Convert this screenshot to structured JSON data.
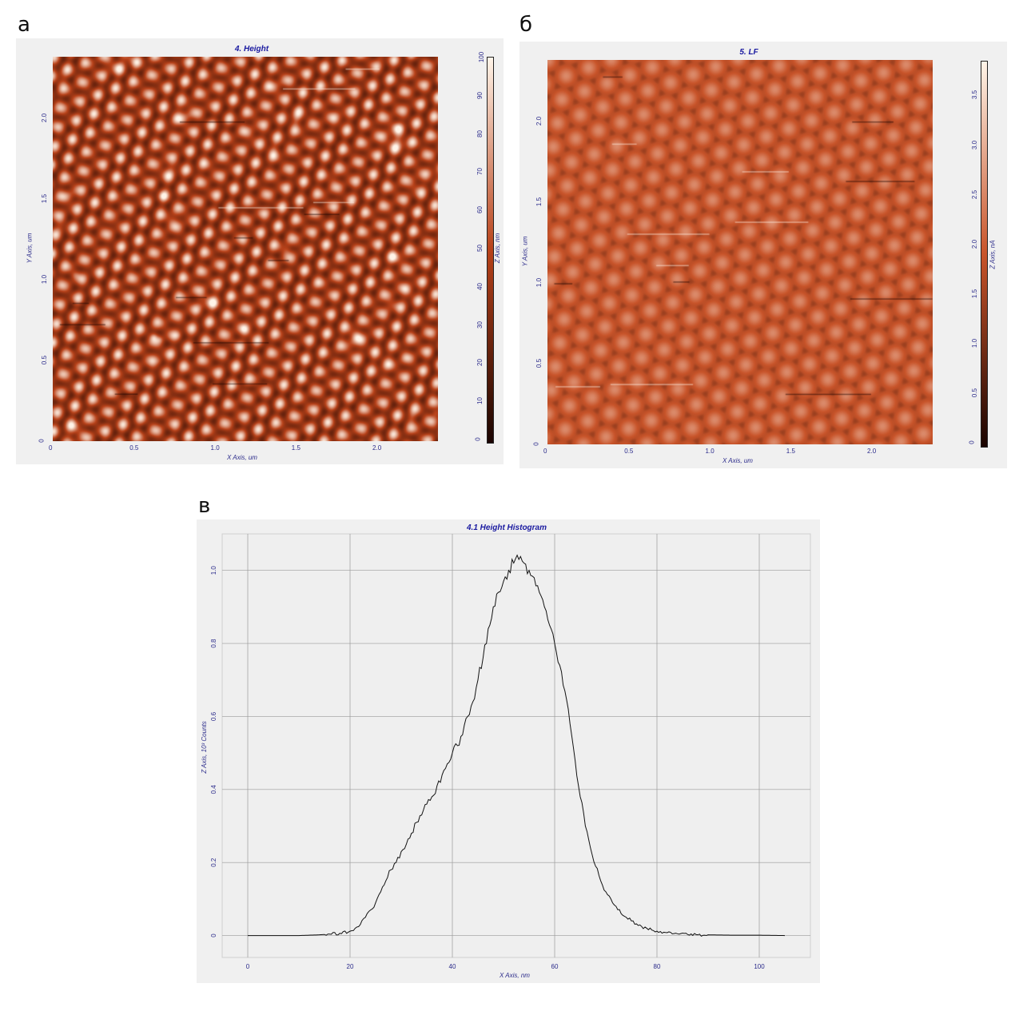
{
  "panels": {
    "a": {
      "letter": "а",
      "title": "4. Height",
      "xlabel": "X Axis, um",
      "ylabel": "Y Axis, um",
      "zlabel": "Z Axis, nm",
      "xticks": [
        "0",
        "0.5",
        "1.0",
        "1.5",
        "2.0"
      ],
      "yticks": [
        "0",
        "0.5",
        "1.0",
        "1.5",
        "2.0"
      ],
      "zticks": [
        "0",
        "10",
        "20",
        "30",
        "40",
        "50",
        "60",
        "70",
        "80",
        "90",
        "100"
      ],
      "colors": {
        "low": "#1a0400",
        "mid": "#b8421a",
        "high": "#fff4e8"
      }
    },
    "b": {
      "letter": "б",
      "title": "5. LF",
      "xlabel": "X Axis, um",
      "ylabel": "Y Axis, um",
      "zlabel": "Z Axis, nA",
      "xticks": [
        "0",
        "0.5",
        "1.0",
        "1.5",
        "2.0"
      ],
      "yticks": [
        "0",
        "0.5",
        "1.0",
        "1.5",
        "2.0"
      ],
      "zticks": [
        "0",
        "0.5",
        "1.0",
        "1.5",
        "2.0",
        "2.5",
        "3.0",
        "3.5"
      ],
      "colors": {
        "low": "#1a0400",
        "mid": "#c8542a",
        "high": "#fff4e8"
      }
    },
    "c": {
      "letter": "в"
    }
  },
  "chart_data": {
    "type": "line",
    "title": "4.1 Height Histogram",
    "xlabel": "X Axis, nm",
    "ylabel": "Z Axis, 10³ Counts",
    "xlim": [
      -5,
      110
    ],
    "ylim": [
      -0.06,
      1.1
    ],
    "xticks": [
      "0",
      "20",
      "40",
      "60",
      "80",
      "100"
    ],
    "yticks": [
      "0",
      "0.2",
      "0.4",
      "0.6",
      "0.8",
      "1.0"
    ],
    "grid": true,
    "x": [
      0,
      10,
      14,
      16,
      18,
      20,
      21,
      22,
      23,
      24,
      25,
      26,
      27,
      28,
      29,
      30,
      31,
      32,
      33,
      34,
      35,
      36,
      37,
      38,
      39,
      40,
      41,
      42,
      43,
      44,
      45,
      46,
      47,
      48,
      49,
      50,
      51,
      52,
      53,
      54,
      55,
      56,
      57,
      58,
      59,
      60,
      61,
      62,
      63,
      64,
      65,
      66,
      67,
      68,
      69,
      70,
      71,
      72,
      73,
      74,
      75,
      76,
      77,
      78,
      79,
      80,
      82,
      84,
      86,
      88,
      90,
      95,
      100,
      105
    ],
    "series": [
      {
        "values": [
          0.0,
          0.0,
          0.002,
          0.004,
          0.006,
          0.012,
          0.02,
          0.03,
          0.05,
          0.07,
          0.09,
          0.12,
          0.15,
          0.18,
          0.2,
          0.23,
          0.25,
          0.28,
          0.31,
          0.33,
          0.36,
          0.38,
          0.41,
          0.44,
          0.47,
          0.5,
          0.52,
          0.55,
          0.6,
          0.64,
          0.7,
          0.76,
          0.84,
          0.9,
          0.94,
          0.97,
          1.0,
          1.02,
          1.03,
          1.02,
          1.0,
          0.98,
          0.94,
          0.9,
          0.85,
          0.8,
          0.74,
          0.67,
          0.58,
          0.48,
          0.38,
          0.3,
          0.24,
          0.19,
          0.15,
          0.12,
          0.1,
          0.08,
          0.06,
          0.05,
          0.04,
          0.032,
          0.025,
          0.02,
          0.015,
          0.012,
          0.008,
          0.005,
          0.003,
          0.002,
          0.002,
          0.001,
          0.001,
          0.0
        ]
      }
    ]
  }
}
